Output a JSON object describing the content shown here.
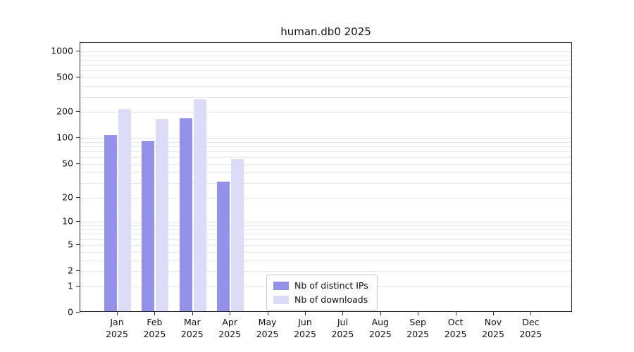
{
  "chart_data": {
    "type": "bar",
    "title": "human.db0 2025",
    "categories": [
      "Jan",
      "Feb",
      "Mar",
      "Apr",
      "May",
      "Jun",
      "Jul",
      "Aug",
      "Sep",
      "Oct",
      "Nov",
      "Dec"
    ],
    "category_year": "2025",
    "series": [
      {
        "name": "Nb of distinct IPs",
        "color": "#9391e9",
        "values": [
          105,
          90,
          165,
          30,
          0,
          0,
          0,
          0,
          0,
          0,
          0,
          0
        ]
      },
      {
        "name": "Nb of downloads",
        "color": "#dcdbf8",
        "values": [
          210,
          160,
          270,
          55,
          0,
          0,
          0,
          0,
          0,
          0,
          0,
          0
        ]
      }
    ],
    "y_ticks": [
      0,
      1,
      2,
      5,
      10,
      20,
      50,
      100,
      200,
      500,
      1000
    ],
    "y_scale": "log10(1+x)",
    "ylim": [
      0,
      1000
    ],
    "grid": "horizontal minor log gridlines",
    "legend_position": "inside bottom center"
  }
}
